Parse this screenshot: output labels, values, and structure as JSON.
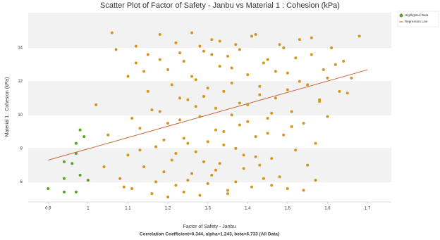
{
  "chart_data": {
    "type": "scatter",
    "title": "Scatter Plot of Factor of Safety - Janbu vs Material 1 : Cohesion (kPa)",
    "x_label": "Factor of Safety - Janbu",
    "y_label": "Material 1 : Cohesion (kPa)",
    "footer": "Correlation Coefficient=0.344, alpha=1.243, beta=6.733 (All Data)",
    "xlim": [
      0.85,
      1.76
    ],
    "ylim": [
      4.8,
      16.1
    ],
    "xticks": [
      0.9,
      1,
      1.1,
      1.2,
      1.3,
      1.4,
      1.5,
      1.6,
      1.7
    ],
    "yticks": [
      6,
      8,
      10,
      12,
      14
    ],
    "grid": true,
    "legend_position": "right",
    "series": [
      {
        "color": "#d4961e",
        "x": [
          1.02,
          1.05,
          1.06,
          1.08,
          1.1,
          1.1,
          1.11,
          1.12,
          1.13,
          1.14,
          1.15,
          1.15,
          1.16,
          1.17,
          1.18,
          1.18,
          1.19,
          1.2,
          1.2,
          1.21,
          1.22,
          1.22,
          1.23,
          1.24,
          1.24,
          1.25,
          1.25,
          1.26,
          1.27,
          1.27,
          1.28,
          1.28,
          1.29,
          1.3,
          1.3,
          1.31,
          1.31,
          1.32,
          1.33,
          1.33,
          1.34,
          1.35,
          1.35,
          1.36,
          1.37,
          1.37,
          1.38,
          1.39,
          1.4,
          1.4,
          1.41,
          1.42,
          1.43,
          1.44,
          1.45,
          1.46,
          1.47,
          1.48,
          1.49,
          1.5,
          1.51,
          1.52,
          1.53,
          1.55,
          1.56,
          1.58,
          1.6,
          1.62,
          1.65,
          1.68,
          1.04,
          1.07,
          1.09,
          1.11,
          1.12,
          1.13,
          1.14,
          1.16,
          1.17,
          1.18,
          1.19,
          1.2,
          1.21,
          1.22,
          1.23,
          1.23,
          1.24,
          1.25,
          1.26,
          1.26,
          1.27,
          1.28,
          1.29,
          1.29,
          1.3,
          1.31,
          1.32,
          1.32,
          1.33,
          1.34,
          1.34,
          1.35,
          1.36,
          1.36,
          1.37,
          1.38,
          1.38,
          1.39,
          1.4,
          1.41,
          1.42,
          1.42,
          1.43,
          1.44,
          1.45,
          1.45,
          1.46,
          1.47,
          1.48,
          1.49,
          1.5,
          1.5,
          1.51,
          1.52,
          1.53,
          1.54,
          1.55,
          1.56,
          1.57,
          1.58,
          1.59,
          1.6,
          1.61,
          1.63,
          1.64,
          1.66,
          1.57,
          1.54,
          1.46,
          1.43
        ],
        "values": [
          10.6,
          8.8,
          14.9,
          6.2,
          7.6,
          12.3,
          5.6,
          14.1,
          9.2,
          6.9,
          11.4,
          13.6,
          5.3,
          8.1,
          10.2,
          14.8,
          6.6,
          12.7,
          9.5,
          7.3,
          14.3,
          5.8,
          11.0,
          8.6,
          13.2,
          6.1,
          10.9,
          14.9,
          7.8,
          12.1,
          5.2,
          9.9,
          13.8,
          8.4,
          11.6,
          6.4,
          14.5,
          10.4,
          7.1,
          12.9,
          9.0,
          13.5,
          5.5,
          11.9,
          8.0,
          14.2,
          10.7,
          6.8,
          12.4,
          9.6,
          14.7,
          7.5,
          11.2,
          13.1,
          8.9,
          10.1,
          12.6,
          6.3,
          14.0,
          11.5,
          9.3,
          13.4,
          12.0,
          7.0,
          14.6,
          10.8,
          12.2,
          13.0,
          11.3,
          14.7,
          6.9,
          13.9,
          5.7,
          9.8,
          13.1,
          7.9,
          12.6,
          10.3,
          6.0,
          13.3,
          8.5,
          5.1,
          11.8,
          7.7,
          9.7,
          13.7,
          5.4,
          8.3,
          12.3,
          6.5,
          10.5,
          14.1,
          7.2,
          11.1,
          5.9,
          13.6,
          9.1,
          6.7,
          14.4,
          8.2,
          11.4,
          5.3,
          10.0,
          12.8,
          6.0,
          9.4,
          13.9,
          7.6,
          10.6,
          5.7,
          8.7,
          14.8,
          11.7,
          6.2,
          9.8,
          13.3,
          7.4,
          11.0,
          14.2,
          8.8,
          5.6,
          12.5,
          10.2,
          7.9,
          14.5,
          9.5,
          11.8,
          13.6,
          8.3,
          10.9,
          12.7,
          9.9,
          14.0,
          11.4,
          13.2,
          12.2,
          6.1,
          5.5,
          5.8,
          7.0
        ]
      },
      {
        "name": "Highlighted Data",
        "color": "#5aa51e",
        "x": [
          0.9,
          0.94,
          0.94,
          0.94,
          0.96,
          0.97,
          0.97,
          0.97,
          0.98,
          0.98,
          0.99,
          1.0
        ],
        "values": [
          5.6,
          7.2,
          6.2,
          5.4,
          7.1,
          7.7,
          8.3,
          5.4,
          9.1,
          6.4,
          8.7,
          6.1
        ]
      }
    ],
    "regression": {
      "name": "Regression Line",
      "color": "#c8693c",
      "x": [
        0.9,
        1.7
      ],
      "values": [
        7.3,
        12.69
      ]
    }
  }
}
